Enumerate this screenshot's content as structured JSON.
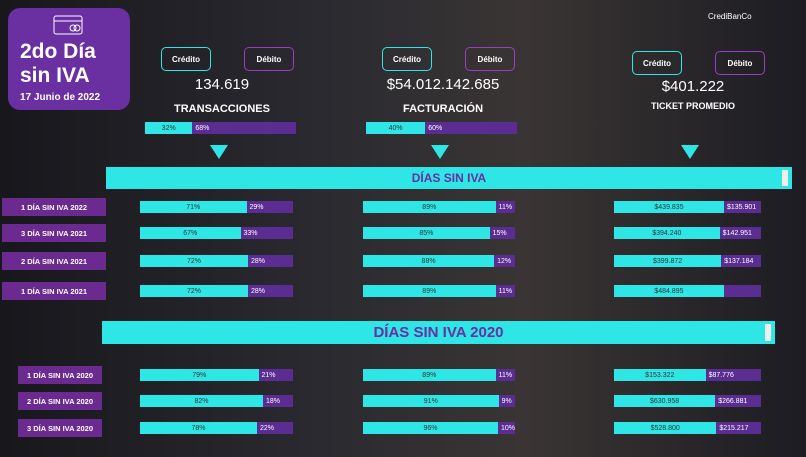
{
  "header": {
    "title": "2do Día sin IVA",
    "date": "17 Junio de 2022",
    "logo": "CrediBanCo"
  },
  "kpis": [
    {
      "credit": "Crédito",
      "debit": "Débito",
      "value": "134.619",
      "label": "TRANSACCIONES",
      "values": [
        32,
        68
      ],
      "value_labels": [
        "32%",
        "68%"
      ]
    },
    {
      "credit": "Crédito",
      "debit": "Débito",
      "value": "$54.012.142.685",
      "label": "FACTURACIÓN",
      "values": [
        40,
        60
      ],
      "value_labels": [
        "40%",
        "60%"
      ]
    },
    {
      "credit": "Crédito",
      "debit": "Débito",
      "value": "$401.222",
      "label": "TICKET PROMEDIO"
    }
  ],
  "sections": [
    {
      "title": "DÍAS SIN IVA",
      "rows": [
        {
          "label": "1 DÍA SIN IVA 2022",
          "transacciones": {
            "values": [
              71,
              29
            ],
            "value_labels": [
              "71%",
              "29%"
            ]
          },
          "facturacion": {
            "values": [
              89,
              11
            ],
            "value_labels": [
              "89%",
              "11%"
            ]
          },
          "ticket": {
            "values": [
              439835,
              135901
            ],
            "value_labels": [
              "$439.835",
              "$135.901"
            ]
          }
        },
        {
          "label": "3 DÍA SIN IVA 2021",
          "transacciones": {
            "values": [
              67,
              33
            ],
            "value_labels": [
              "67%",
              "33%"
            ]
          },
          "facturacion": {
            "values": [
              85,
              15
            ],
            "value_labels": [
              "85%",
              "15%"
            ]
          },
          "ticket": {
            "values": [
              394240,
              142951
            ],
            "value_labels": [
              "$394.240",
              "$142.951"
            ]
          }
        },
        {
          "label": "2 DÍA SIN IVA 2021",
          "transacciones": {
            "values": [
              72,
              28
            ],
            "value_labels": [
              "72%",
              "28%"
            ]
          },
          "facturacion": {
            "values": [
              88,
              12
            ],
            "value_labels": [
              "88%",
              "12%"
            ]
          },
          "ticket": {
            "values": [
              399872,
              137184
            ],
            "value_labels": [
              "$399.872",
              "$137.184"
            ]
          }
        },
        {
          "label": "1 DÍA SIN IVA 2021",
          "transacciones": {
            "values": [
              72,
              28
            ],
            "value_labels": [
              "72%",
              "28%"
            ]
          },
          "facturacion": {
            "values": [
              89,
              11
            ],
            "value_labels": [
              "89%",
              "11%"
            ]
          },
          "ticket": {
            "values": [
              484895,
              151000
            ],
            "value_labels": [
              "$484.895",
              null
            ]
          }
        }
      ]
    },
    {
      "title": "DÍAS SIN IVA 2020",
      "rows": [
        {
          "label": "1 DÍA SIN IVA 2020",
          "transacciones": {
            "values": [
              79,
              21
            ],
            "value_labels": [
              "79%",
              "21%"
            ]
          },
          "facturacion": {
            "values": [
              89,
              11
            ],
            "value_labels": [
              "89%",
              "11%"
            ]
          },
          "ticket": {
            "values": [
              153322,
              87776
            ],
            "value_labels": [
              "$153.322",
              "$87.776"
            ]
          }
        },
        {
          "label": "2 DÍA SIN IVA 2020",
          "transacciones": {
            "values": [
              82,
              18
            ],
            "value_labels": [
              "82%",
              "18%"
            ]
          },
          "facturacion": {
            "values": [
              91,
              9
            ],
            "value_labels": [
              "91%",
              "9%"
            ]
          },
          "ticket": {
            "values": [
              630958,
              266881
            ],
            "value_labels": [
              "$630.958",
              "$266.881"
            ]
          }
        },
        {
          "label": "3 DÍA SIN IVA 2020",
          "transacciones": {
            "values": [
              78,
              22
            ],
            "value_labels": [
              "78%",
              "22%"
            ]
          },
          "facturacion": {
            "values": [
              96,
              10
            ],
            "value_labels": [
              "96%",
              "10%"
            ]
          },
          "ticket": {
            "values": [
              528800,
              215217
            ],
            "value_labels": [
              "$528.800",
              "$215.217"
            ]
          }
        }
      ]
    }
  ]
}
